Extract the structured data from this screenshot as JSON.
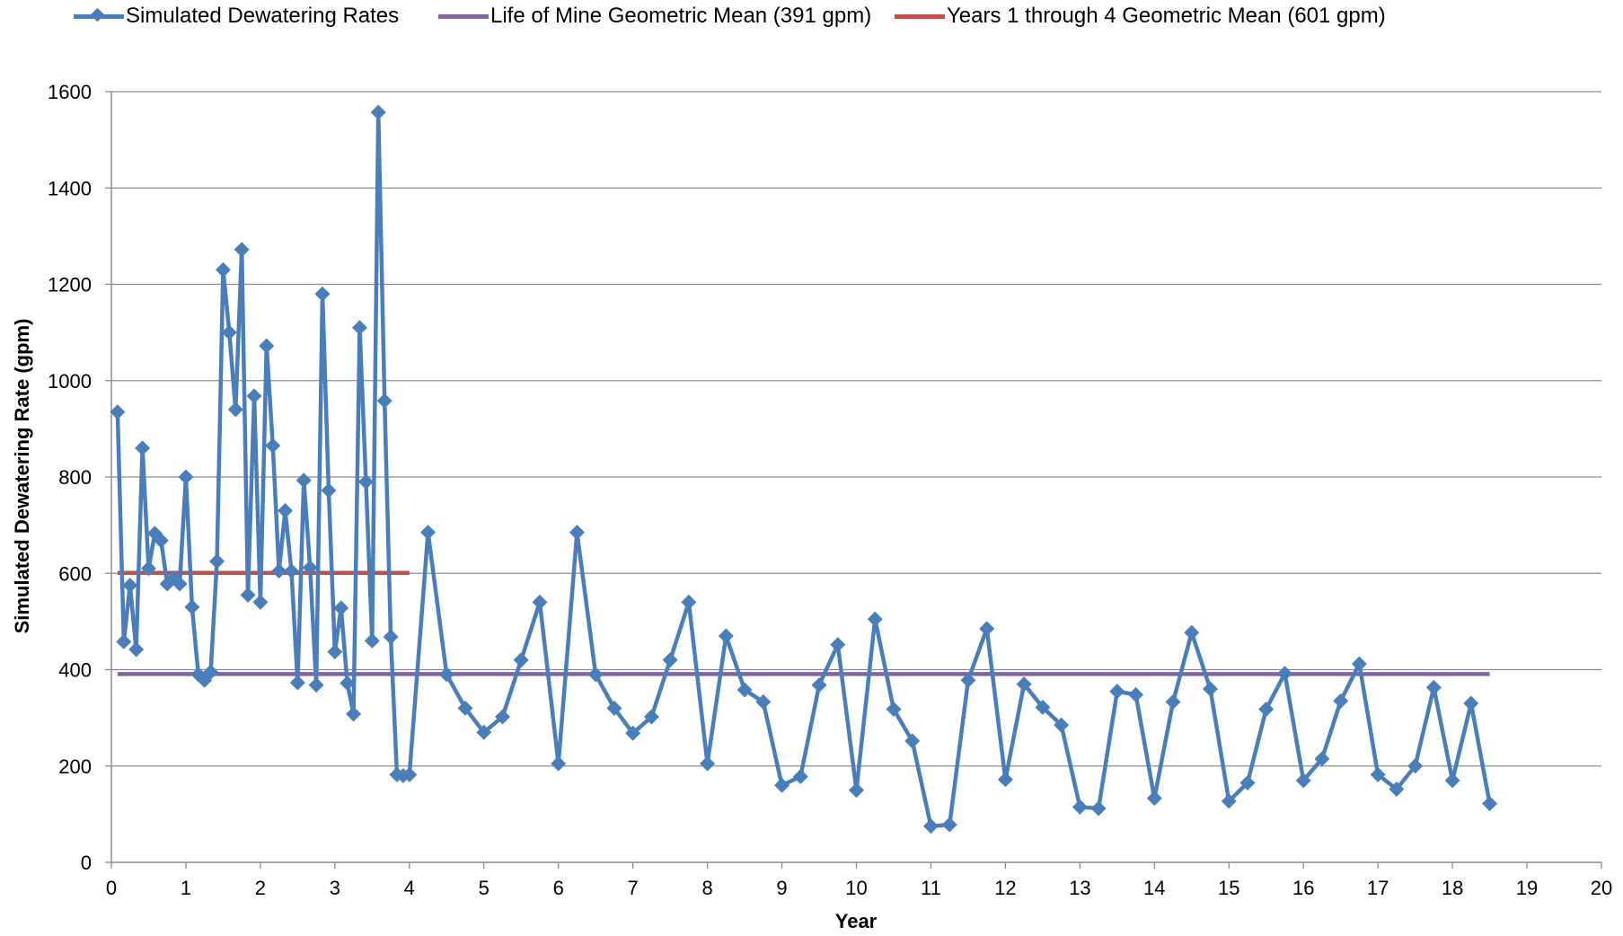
{
  "chart_data": {
    "type": "line",
    "title": "",
    "xlabel": "Year",
    "ylabel": "Simulated Dewatering Rate (gpm)",
    "xlim": [
      0,
      20
    ],
    "ylim": [
      0,
      1600
    ],
    "x_ticks": [
      "0",
      "1",
      "2",
      "3",
      "4",
      "5",
      "6",
      "7",
      "8",
      "9",
      "10",
      "11",
      "12",
      "13",
      "14",
      "15",
      "16",
      "17",
      "18",
      "19",
      "20"
    ],
    "y_ticks": [
      "0",
      "200",
      "400",
      "600",
      "800",
      "1000",
      "1200",
      "1400",
      "1600"
    ],
    "grid": "horizontal",
    "legend_position": "top",
    "series": [
      {
        "name": "Simulated Dewatering Rates",
        "color": "#4a7ebb",
        "marker": "diamond",
        "x": [
          0.083,
          0.167,
          0.25,
          0.333,
          0.417,
          0.5,
          0.583,
          0.667,
          0.75,
          0.833,
          0.917,
          1.0,
          1.083,
          1.167,
          1.25,
          1.333,
          1.417,
          1.5,
          1.583,
          1.667,
          1.75,
          1.833,
          1.917,
          2.0,
          2.083,
          2.167,
          2.25,
          2.333,
          2.417,
          2.5,
          2.583,
          2.667,
          2.75,
          2.833,
          2.917,
          3.0,
          3.083,
          3.167,
          3.25,
          3.333,
          3.417,
          3.5,
          3.583,
          3.667,
          3.75,
          3.833,
          3.917,
          4.0,
          4.25,
          4.5,
          4.75,
          5.0,
          5.25,
          5.5,
          5.75,
          6.0,
          6.25,
          6.5,
          6.75,
          7.0,
          7.25,
          7.5,
          7.75,
          8.0,
          8.25,
          8.5,
          8.75,
          9.0,
          9.25,
          9.5,
          9.75,
          10.0,
          10.25,
          10.5,
          10.75,
          11.0,
          11.25,
          11.5,
          11.75,
          12.0,
          12.25,
          12.5,
          12.75,
          13.0,
          13.25,
          13.5,
          13.75,
          14.0,
          14.25,
          14.5,
          14.75,
          15.0,
          15.25,
          15.5,
          15.75,
          16.0,
          16.25,
          16.5,
          16.75,
          17.0,
          17.25,
          17.5,
          17.75,
          18.0,
          18.25,
          18.5
        ],
        "y": [
          935,
          458,
          575,
          442,
          860,
          610,
          683,
          668,
          578,
          590,
          578,
          800,
          530,
          390,
          378,
          395,
          625,
          1230,
          1100,
          940,
          1272,
          555,
          968,
          540,
          1072,
          865,
          605,
          730,
          605,
          373,
          793,
          612,
          368,
          1180,
          772,
          437,
          528,
          372,
          308,
          1110,
          790,
          460,
          1557,
          958,
          468,
          182,
          180,
          182,
          685,
          390,
          320,
          270,
          302,
          420,
          540,
          205,
          685,
          390,
          320,
          268,
          302,
          420,
          540,
          205,
          470,
          358,
          333,
          160,
          178,
          368,
          452,
          150,
          505,
          318,
          252,
          75,
          78,
          378,
          485,
          172,
          370,
          322,
          285,
          115,
          112,
          355,
          348,
          133,
          333,
          477,
          360,
          127,
          165,
          318,
          392,
          170,
          215,
          335,
          412,
          182,
          152,
          200,
          363,
          170,
          330,
          122
        ]
      },
      {
        "name": "Life of Mine Geometric Mean (391 gpm)",
        "color": "#8064a2",
        "x": [
          0.083,
          18.5
        ],
        "y": [
          391,
          391
        ]
      },
      {
        "name": "Years 1 through 4 Geometric Mean (601 gpm)",
        "color": "#c0504d",
        "x": [
          0.083,
          4.0
        ],
        "y": [
          601,
          601
        ]
      }
    ]
  }
}
